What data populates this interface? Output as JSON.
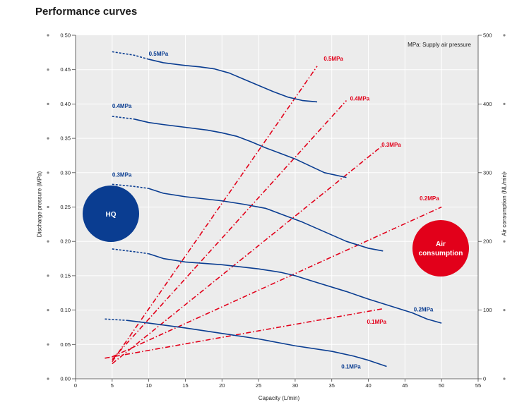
{
  "page": {
    "title": "Performance curves"
  },
  "chart_data": {
    "type": "line",
    "title": "Performance curves",
    "xlabel": "Capacity (L/min)",
    "ylabel": "Discharge pressure (MPa)",
    "y2label": "Air consumption (NL/min)",
    "xlim": [
      0,
      55
    ],
    "ylim": [
      0,
      0.5
    ],
    "y2lim": [
      0,
      500
    ],
    "xticks": [
      "0",
      "5",
      "10",
      "15",
      "20",
      "25",
      "30",
      "35",
      "40",
      "45",
      "50",
      "55"
    ],
    "yticks": [
      "0.00",
      "0.05",
      "0.10",
      "0.15",
      "0.20",
      "0.25",
      "0.30",
      "0.35",
      "0.40",
      "0.45",
      "0.50"
    ],
    "y2ticks": [
      "0",
      "100",
      "200",
      "300",
      "400",
      "500"
    ],
    "note": "MPa: Supply air pressure",
    "badges": {
      "hq": "HQ",
      "air_line1": "Air",
      "air_line2": "consumption"
    },
    "colors": {
      "pressure": "#0a3d91",
      "air": "#e2001a",
      "panel": "#ececec",
      "grid": "#ffffff"
    },
    "pressure_series": [
      {
        "name": "0.5MPa",
        "dashed_x": [
          5,
          10
        ],
        "points": [
          [
            5,
            0.476
          ],
          [
            8,
            0.471
          ],
          [
            10,
            0.465
          ],
          [
            12,
            0.46
          ],
          [
            15,
            0.456
          ],
          [
            17,
            0.454
          ],
          [
            19,
            0.451
          ],
          [
            21,
            0.445
          ],
          [
            23,
            0.436
          ],
          [
            25,
            0.427
          ],
          [
            27,
            0.418
          ],
          [
            29,
            0.41
          ],
          [
            31,
            0.405
          ],
          [
            33,
            0.403
          ]
        ]
      },
      {
        "name": "0.4MPa",
        "dashed_x": [
          5,
          8
        ],
        "points": [
          [
            5,
            0.382
          ],
          [
            8,
            0.378
          ],
          [
            10,
            0.373
          ],
          [
            12,
            0.37
          ],
          [
            15,
            0.366
          ],
          [
            18,
            0.362
          ],
          [
            20,
            0.358
          ],
          [
            22,
            0.353
          ],
          [
            24,
            0.345
          ],
          [
            26,
            0.336
          ],
          [
            28,
            0.328
          ],
          [
            30,
            0.32
          ],
          [
            32,
            0.31
          ],
          [
            34,
            0.3
          ],
          [
            37,
            0.293
          ]
        ]
      },
      {
        "name": "0.3MPa",
        "dashed_x": [
          5,
          10
        ],
        "points": [
          [
            5,
            0.283
          ],
          [
            8,
            0.28
          ],
          [
            10,
            0.277
          ],
          [
            12,
            0.27
          ],
          [
            15,
            0.265
          ],
          [
            20,
            0.259
          ],
          [
            23,
            0.254
          ],
          [
            26,
            0.248
          ],
          [
            28,
            0.24
          ],
          [
            31,
            0.228
          ],
          [
            34,
            0.214
          ],
          [
            37,
            0.2
          ],
          [
            40,
            0.19
          ],
          [
            42,
            0.186
          ]
        ]
      },
      {
        "name": "0.2MPa",
        "dashed_x": [
          5,
          10
        ],
        "points": [
          [
            5,
            0.189
          ],
          [
            8,
            0.185
          ],
          [
            10,
            0.182
          ],
          [
            12,
            0.175
          ],
          [
            15,
            0.17
          ],
          [
            20,
            0.166
          ],
          [
            25,
            0.16
          ],
          [
            28,
            0.155
          ],
          [
            30,
            0.15
          ],
          [
            33,
            0.14
          ],
          [
            37,
            0.127
          ],
          [
            40,
            0.116
          ],
          [
            43,
            0.106
          ],
          [
            46,
            0.096
          ],
          [
            48,
            0.087
          ],
          [
            50,
            0.081
          ]
        ]
      },
      {
        "name": "0.1MPa",
        "dashed_x": [
          4,
          7
        ],
        "points": [
          [
            4,
            0.087
          ],
          [
            7,
            0.085
          ],
          [
            10,
            0.081
          ],
          [
            15,
            0.074
          ],
          [
            20,
            0.066
          ],
          [
            25,
            0.058
          ],
          [
            30,
            0.048
          ],
          [
            35,
            0.04
          ],
          [
            38,
            0.033
          ],
          [
            40,
            0.027
          ],
          [
            42.5,
            0.018
          ]
        ]
      }
    ],
    "air_series": [
      {
        "name": "0.5MPa",
        "points": [
          [
            5,
            25
          ],
          [
            33,
            455
          ]
        ]
      },
      {
        "name": "0.4MPa",
        "points": [
          [
            5,
            28
          ],
          [
            37,
            405
          ]
        ]
      },
      {
        "name": "0.3MPa",
        "points": [
          [
            5,
            22
          ],
          [
            42,
            340
          ]
        ]
      },
      {
        "name": "0.2MPa",
        "points": [
          [
            5,
            32
          ],
          [
            50,
            250
          ]
        ]
      },
      {
        "name": "0.1MPa",
        "points": [
          [
            4,
            30
          ],
          [
            42,
            102
          ]
        ]
      }
    ],
    "labels": [
      {
        "text": "0.5MPa",
        "color": "blue",
        "x": 10,
        "y": 0.47
      },
      {
        "text": "0.4MPa",
        "color": "blue",
        "x": 5,
        "y": 0.394
      },
      {
        "text": "0.3MPa",
        "color": "blue",
        "x": 5,
        "y": 0.294
      },
      {
        "text": "0.2MPa",
        "color": "blue",
        "x": 46.2,
        "y": 0.098
      },
      {
        "text": "0.1MPa",
        "color": "blue",
        "x": 36.3,
        "y": 0.015
      },
      {
        "text": "0.5MPa",
        "color": "red",
        "x": 33.9,
        "y": 0.463
      },
      {
        "text": "0.4MPa",
        "color": "red",
        "x": 37.5,
        "y": 0.405
      },
      {
        "text": "0.3MPa",
        "color": "red",
        "x": 41.8,
        "y": 0.338
      },
      {
        "text": "0.2MPa",
        "color": "red",
        "x": 47,
        "y": 0.26
      },
      {
        "text": "0.1MPa",
        "color": "red",
        "x": 39.8,
        "y": 0.08
      }
    ],
    "grid": true
  }
}
